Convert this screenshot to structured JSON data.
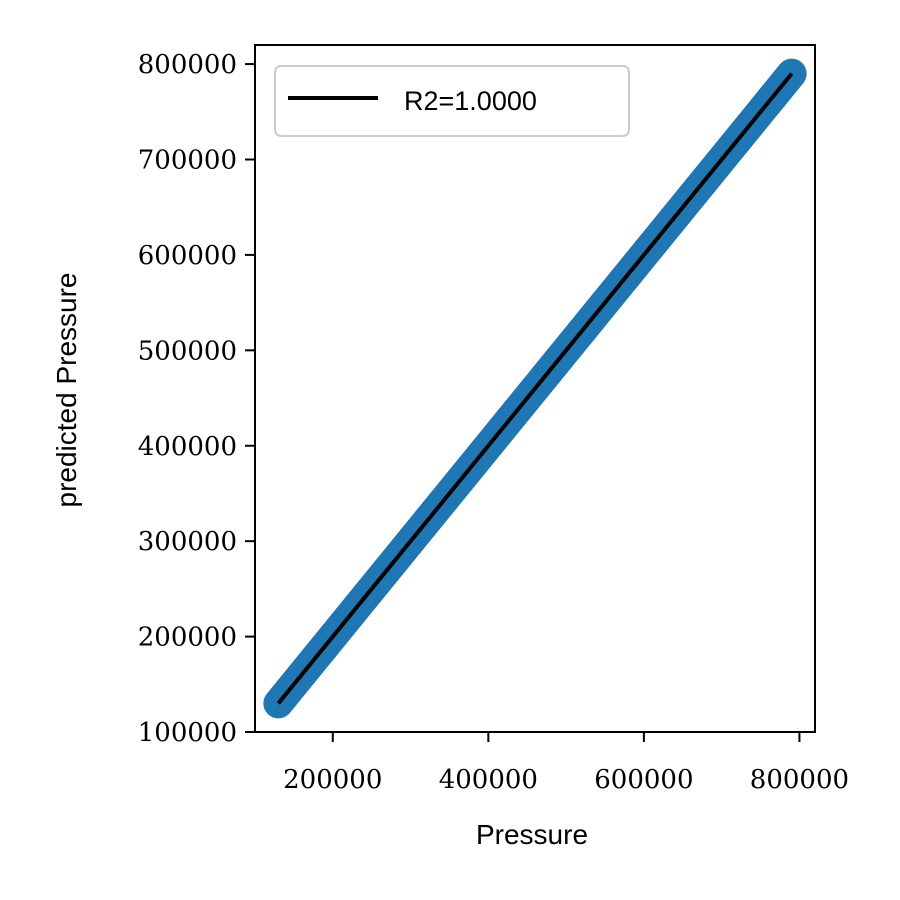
{
  "chart_data": {
    "type": "scatter",
    "xlabel": "Pressure",
    "ylabel": "predicted Pressure",
    "xlim": [
      100000,
      820000
    ],
    "ylim": [
      100000,
      820000
    ],
    "x_ticks": [
      200000,
      400000,
      600000,
      800000
    ],
    "y_ticks": [
      100000,
      200000,
      300000,
      400000,
      500000,
      600000,
      700000,
      800000
    ],
    "x_tick_labels": [
      "200000",
      "400000",
      "600000",
      "800000"
    ],
    "y_tick_labels": [
      "100000",
      "200000",
      "300000",
      "400000",
      "500000",
      "600000",
      "700000",
      "800000"
    ],
    "series": [
      {
        "kind": "scatter",
        "color": "#1f77b4",
        "x": [
          130000,
          175000,
          220000,
          265000,
          310000,
          355000,
          400000,
          445000,
          490000,
          535000,
          580000,
          625000,
          670000,
          715000,
          760000,
          790000
        ],
        "y": [
          130000,
          175000,
          220000,
          265000,
          310000,
          355000,
          400000,
          445000,
          490000,
          535000,
          580000,
          625000,
          670000,
          715000,
          760000,
          790000
        ]
      },
      {
        "kind": "line",
        "name": "R2=1.0000",
        "color": "#000000",
        "x": [
          130000,
          790000
        ],
        "y": [
          130000,
          790000
        ]
      }
    ],
    "grid": false,
    "legend": {
      "position": "top-left",
      "entries": [
        "R2=1.0000"
      ]
    }
  }
}
